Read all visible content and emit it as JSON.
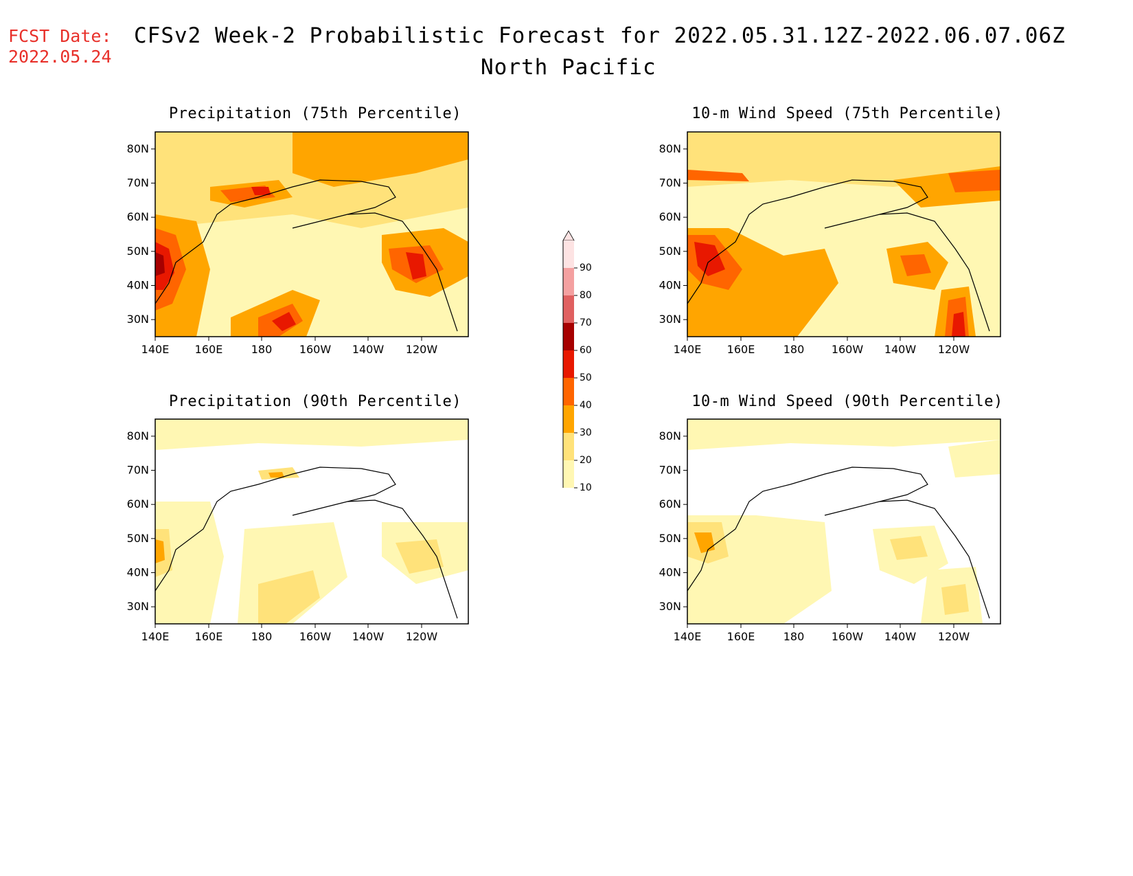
{
  "header": {
    "fcst_label": "FCST Date:",
    "fcst_date": "2022.05.24",
    "title": "CFSv2 Week-2 Probabilistic Forecast for 2022.05.31.12Z-2022.06.07.06Z",
    "subtitle": "North Pacific"
  },
  "colors": {
    "c10": "#fff7b3",
    "c20": "#ffe27a",
    "c30": "#ffa500",
    "c40": "#ff6500",
    "c50": "#e81800",
    "c60": "#a60000",
    "c70": "#e06060",
    "c80": "#f4a0a0",
    "c90": "#fde3e3"
  },
  "colorbar": {
    "levels": [
      "10",
      "20",
      "30",
      "40",
      "50",
      "60",
      "70",
      "80",
      "90"
    ]
  },
  "axes": {
    "lat_labels": [
      "80N",
      "70N",
      "60N",
      "50N",
      "40N",
      "30N"
    ],
    "lon_labels": [
      "140E",
      "160E",
      "180",
      "160W",
      "140W",
      "120W"
    ]
  },
  "panels": [
    {
      "title": "Precipitation (75th Percentile)",
      "id": "precip75"
    },
    {
      "title": "10-m Wind Speed (75th Percentile)",
      "id": "wind75"
    },
    {
      "title": "Precipitation (90th Percentile)",
      "id": "precip90"
    },
    {
      "title": "10-m Wind Speed (90th Percentile)",
      "id": "wind90"
    }
  ]
}
